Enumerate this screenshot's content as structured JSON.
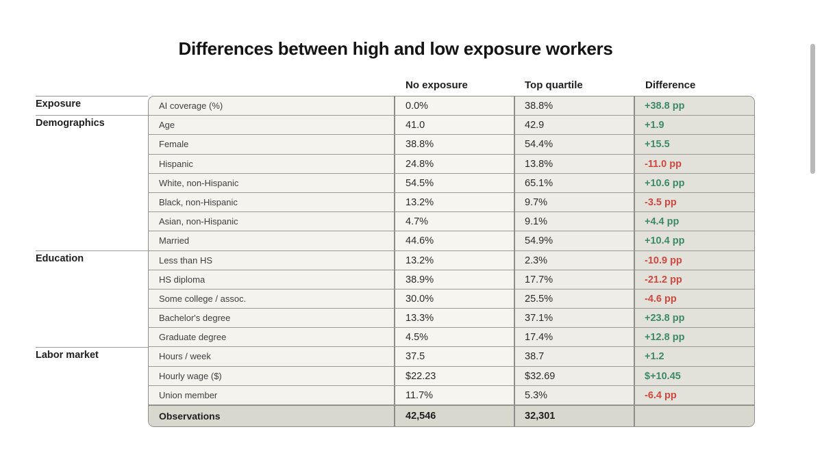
{
  "title": "Differences between high and low exposure workers",
  "columns": {
    "no_exposure": "No exposure",
    "top_quartile": "Top quartile",
    "difference": "Difference"
  },
  "groups": [
    {
      "name": "Exposure",
      "row_index": 0
    },
    {
      "name": "Demographics",
      "row_index": 1
    },
    {
      "name": "Education",
      "row_index": 8
    },
    {
      "name": "Labor market",
      "row_index": 13
    }
  ],
  "rows": [
    {
      "label": "AI coverage (%)",
      "no_exposure": "0.0%",
      "top_quartile": "38.8%",
      "difference": "+38.8 pp",
      "sign": "pos"
    },
    {
      "label": "Age",
      "no_exposure": "41.0",
      "top_quartile": "42.9",
      "difference": "+1.9",
      "sign": "pos"
    },
    {
      "label": "Female",
      "no_exposure": "38.8%",
      "top_quartile": "54.4%",
      "difference": "+15.5",
      "sign": "pos"
    },
    {
      "label": "Hispanic",
      "no_exposure": "24.8%",
      "top_quartile": "13.8%",
      "difference": "-11.0 pp",
      "sign": "neg"
    },
    {
      "label": "White, non-Hispanic",
      "no_exposure": "54.5%",
      "top_quartile": "65.1%",
      "difference": "+10.6 pp",
      "sign": "pos"
    },
    {
      "label": "Black, non-Hispanic",
      "no_exposure": "13.2%",
      "top_quartile": "9.7%",
      "difference": "-3.5 pp",
      "sign": "neg"
    },
    {
      "label": "Asian, non-Hispanic",
      "no_exposure": "4.7%",
      "top_quartile": "9.1%",
      "difference": "+4.4 pp",
      "sign": "pos"
    },
    {
      "label": "Married",
      "no_exposure": "44.6%",
      "top_quartile": "54.9%",
      "difference": "+10.4 pp",
      "sign": "pos"
    },
    {
      "label": "Less than HS",
      "no_exposure": "13.2%",
      "top_quartile": "2.3%",
      "difference": "-10.9 pp",
      "sign": "neg"
    },
    {
      "label": "HS diploma",
      "no_exposure": "38.9%",
      "top_quartile": "17.7%",
      "difference": "-21.2 pp",
      "sign": "neg"
    },
    {
      "label": "Some college / assoc.",
      "no_exposure": "30.0%",
      "top_quartile": "25.5%",
      "difference": "-4.6 pp",
      "sign": "neg"
    },
    {
      "label": "Bachelor's degree",
      "no_exposure": "13.3%",
      "top_quartile": "37.1%",
      "difference": "+23.8 pp",
      "sign": "pos"
    },
    {
      "label": "Graduate degree",
      "no_exposure": "4.5%",
      "top_quartile": "17.4%",
      "difference": "+12.8 pp",
      "sign": "pos"
    },
    {
      "label": "Hours / week",
      "no_exposure": "37.5",
      "top_quartile": "38.7",
      "difference": "+1.2",
      "sign": "pos"
    },
    {
      "label": "Hourly wage ($)",
      "no_exposure": "$22.23",
      "top_quartile": "$32.69",
      "difference": "$+10.45",
      "sign": "pos"
    },
    {
      "label": "Union member",
      "no_exposure": "11.7%",
      "top_quartile": "5.3%",
      "difference": "-6.4 pp",
      "sign": "neg"
    }
  ],
  "observations": {
    "label": "Observations",
    "no_exposure": "42,546",
    "top_quartile": "32,301",
    "difference": ""
  },
  "colors": {
    "positive": "#3c8a63",
    "negative": "#d0473f"
  }
}
